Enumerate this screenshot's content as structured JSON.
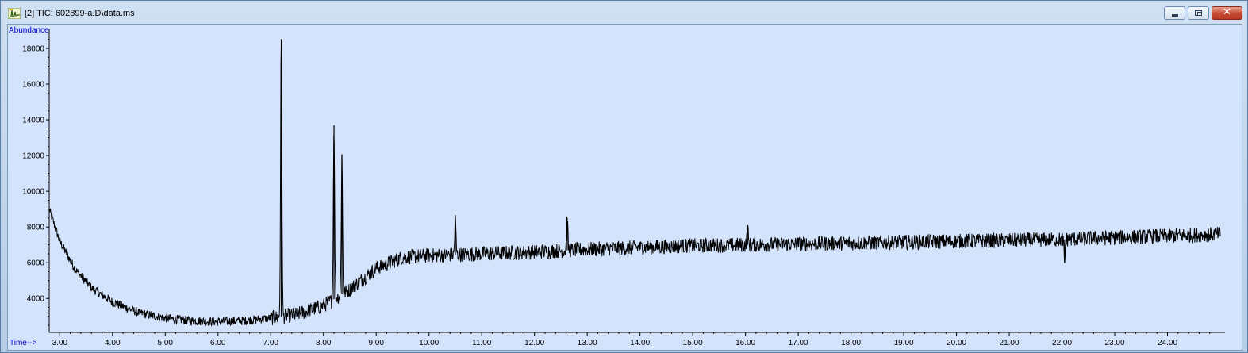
{
  "window": {
    "title": "[2] TIC: 602899-a.D\\data.ms",
    "icon": "chromatogram-app-icon",
    "controls": {
      "minimize": "minimize-icon",
      "maximize": "restore-icon",
      "close": "close-icon"
    },
    "close_glyph": "✕"
  },
  "colors": {
    "plot_background": "#d3e3fb",
    "trace": "#000000",
    "axis_label": "#0000cc",
    "close_button": "#c44a32"
  },
  "chart_data": {
    "type": "line",
    "ylabel": "Abundance",
    "xlabel": "Time-->",
    "xlim": [
      2.8,
      25.0
    ],
    "ylim": [
      2100,
      18800
    ],
    "x_ticks": [
      "3.00",
      "4.00",
      "5.00",
      "6.00",
      "7.00",
      "8.00",
      "9.00",
      "10.00",
      "11.00",
      "12.00",
      "13.00",
      "14.00",
      "15.00",
      "16.00",
      "17.00",
      "18.00",
      "19.00",
      "20.00",
      "21.00",
      "22.00",
      "23.00",
      "24.00"
    ],
    "y_ticks": [
      "4000",
      "6000",
      "8000",
      "10000",
      "12000",
      "14000",
      "16000",
      "18000"
    ],
    "grid": false,
    "series": [
      {
        "baseline": {
          "x": [
            2.8,
            3.0,
            3.3,
            3.6,
            4.0,
            4.5,
            5.0,
            5.5,
            6.0,
            6.5,
            7.0,
            7.5,
            8.0,
            8.5,
            9.0,
            9.5,
            10.0,
            11.0,
            12.0,
            13.0,
            14.0,
            15.0,
            16.0,
            17.0,
            18.0,
            19.0,
            20.0,
            21.0,
            22.0,
            23.0,
            24.0,
            25.0
          ],
          "y": [
            9000,
            7200,
            5600,
            4600,
            3800,
            3200,
            2900,
            2750,
            2700,
            2750,
            2900,
            3100,
            3600,
            4500,
            5700,
            6300,
            6400,
            6500,
            6600,
            6750,
            6850,
            6950,
            7000,
            7050,
            7100,
            7150,
            7200,
            7250,
            7300,
            7400,
            7500,
            7600
          ]
        },
        "peaks": [
          {
            "x": 7.2,
            "y": 18500
          },
          {
            "x": 8.2,
            "y": 13700
          },
          {
            "x": 8.35,
            "y": 12000
          },
          {
            "x": 10.5,
            "y": 8400
          },
          {
            "x": 12.62,
            "y": 8500
          },
          {
            "x": 16.04,
            "y": 7950
          },
          {
            "x": 22.05,
            "y": 6000
          }
        ],
        "noise_amplitude": 420
      }
    ]
  }
}
